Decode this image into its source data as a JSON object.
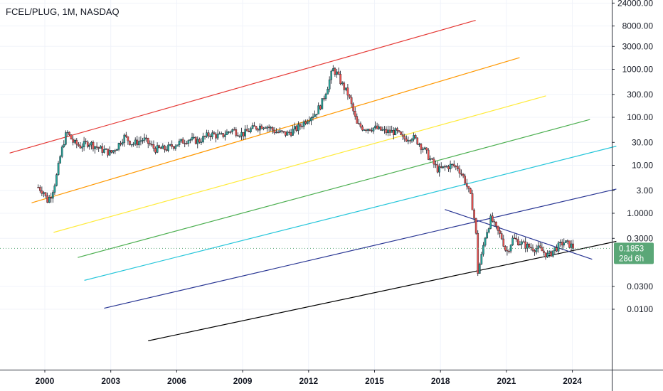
{
  "symbol_title": "FCEL/PLUG, 1M, NASDAQ",
  "chart_data": {
    "type": "candlestick",
    "title": "FCEL/PLUG, 1M, NASDAQ",
    "y_scale": "log",
    "ylim": [
      0.0015,
      30000
    ],
    "xlim": [
      1998.4,
      2027.0
    ],
    "y_ticks": [
      "24000.00",
      "8000.00",
      "3000.00",
      "1000.00",
      "300.00",
      "100.00",
      "30.00",
      "10.00",
      "3.00",
      "1.0000",
      "0.3000",
      "0.0300",
      "0.0100"
    ],
    "y_tick_values": [
      24000,
      8000,
      3000,
      1000,
      300,
      100,
      30,
      10,
      3,
      1,
      0.3,
      0.03,
      0.01
    ],
    "x_ticks": [
      "2000",
      "2003",
      "2006",
      "2009",
      "2012",
      "2015",
      "2018",
      "2021",
      "2024"
    ],
    "x_tick_values": [
      2000,
      2003,
      2006,
      2009,
      2012,
      2015,
      2018,
      2021,
      2024
    ],
    "last_price": {
      "value": 0.1853,
      "label": "0.1853",
      "countdown": "28d 6h",
      "color": "#5aa777"
    },
    "grid": true,
    "price_path": [
      [
        1999.7,
        3.5
      ],
      [
        1999.95,
        2.8
      ],
      [
        2000.1,
        1.8
      ],
      [
        2000.3,
        2.5
      ],
      [
        2000.5,
        5
      ],
      [
        2000.7,
        15
      ],
      [
        2000.85,
        30
      ],
      [
        2001.0,
        50
      ],
      [
        2001.3,
        30
      ],
      [
        2001.6,
        25
      ],
      [
        2002.0,
        30
      ],
      [
        2002.5,
        22
      ],
      [
        2003.0,
        18
      ],
      [
        2003.3,
        25
      ],
      [
        2003.6,
        40
      ],
      [
        2004.0,
        28
      ],
      [
        2004.5,
        35
      ],
      [
        2005.0,
        22
      ],
      [
        2005.5,
        22
      ],
      [
        2006.0,
        28
      ],
      [
        2006.5,
        35
      ],
      [
        2007.0,
        32
      ],
      [
        2007.5,
        45
      ],
      [
        2008.0,
        40
      ],
      [
        2008.5,
        55
      ],
      [
        2009.0,
        45
      ],
      [
        2009.5,
        60
      ],
      [
        2010.0,
        70
      ],
      [
        2010.5,
        50
      ],
      [
        2011.0,
        45
      ],
      [
        2011.5,
        60
      ],
      [
        2011.8,
        80
      ],
      [
        2012.0,
        100
      ],
      [
        2012.3,
        120
      ],
      [
        2012.6,
        200
      ],
      [
        2012.9,
        500
      ],
      [
        2013.1,
        1000
      ],
      [
        2013.3,
        800
      ],
      [
        2013.5,
        500
      ],
      [
        2013.8,
        300
      ],
      [
        2014.0,
        150
      ],
      [
        2014.2,
        70
      ],
      [
        2014.5,
        60
      ],
      [
        2015.0,
        60
      ],
      [
        2015.5,
        50
      ],
      [
        2016.0,
        50
      ],
      [
        2016.3,
        35
      ],
      [
        2016.7,
        40
      ],
      [
        2017.0,
        30
      ],
      [
        2017.3,
        20
      ],
      [
        2017.6,
        12
      ],
      [
        2017.9,
        8
      ],
      [
        2018.2,
        9
      ],
      [
        2018.5,
        10
      ],
      [
        2018.8,
        9
      ],
      [
        2019.1,
        5
      ],
      [
        2019.4,
        2
      ],
      [
        2019.6,
        0.5
      ],
      [
        2019.7,
        0.06
      ],
      [
        2019.9,
        0.15
      ],
      [
        2020.0,
        0.3
      ],
      [
        2020.3,
        0.8
      ],
      [
        2020.5,
        0.5
      ],
      [
        2020.8,
        0.3
      ],
      [
        2021.0,
        0.15
      ],
      [
        2021.3,
        0.3
      ],
      [
        2021.6,
        0.25
      ],
      [
        2022.0,
        0.2
      ],
      [
        2022.5,
        0.18
      ],
      [
        2022.9,
        0.13
      ],
      [
        2023.2,
        0.18
      ],
      [
        2023.6,
        0.25
      ],
      [
        2023.9,
        0.22
      ],
      [
        2024.1,
        0.1853
      ]
    ],
    "trend_lines": [
      {
        "color": "#e53935",
        "from": [
          1998.4,
          18
        ],
        "to": [
          2019.6,
          10500
        ]
      },
      {
        "color": "#ff9800",
        "from": [
          1999.4,
          1.65
        ],
        "to": [
          2021.6,
          1750
        ]
      },
      {
        "color": "#ffeb3b",
        "from": [
          2000.4,
          0.4
        ],
        "to": [
          2022.8,
          280
        ]
      },
      {
        "color": "#4caf50",
        "from": [
          2001.5,
          0.12
        ],
        "to": [
          2024.8,
          90
        ]
      },
      {
        "color": "#26c6da",
        "from": [
          2001.8,
          0.04
        ],
        "to": [
          2026.0,
          25
        ]
      },
      {
        "color": "#283593",
        "from": [
          2002.7,
          0.0105
        ],
        "to": [
          2026.0,
          3.2
        ]
      },
      {
        "color": "#000000",
        "from": [
          2004.7,
          0.0022
        ],
        "to": [
          2026.0,
          0.26
        ]
      },
      {
        "color": "#283593",
        "from": [
          2018.2,
          1.2
        ],
        "to": [
          2024.9,
          0.11
        ]
      }
    ]
  }
}
